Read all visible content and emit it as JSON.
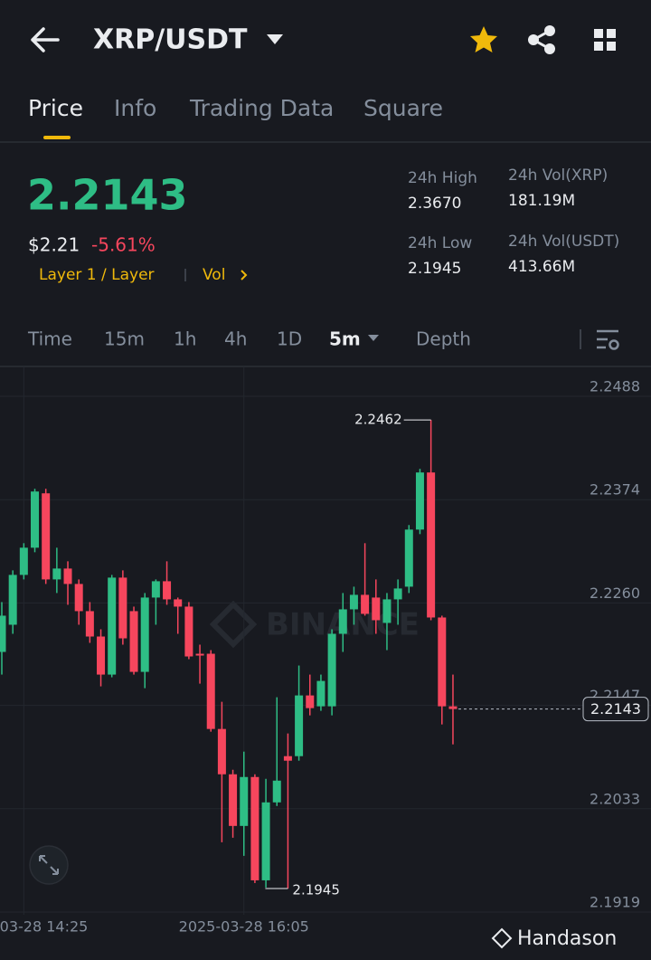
{
  "header": {
    "title": "XRP/USDT"
  },
  "tabs": [
    "Price",
    "Info",
    "Trading Data",
    "Square"
  ],
  "price": {
    "last": "2.2143",
    "usd": "$2.21",
    "change": "-5.61%",
    "tag": "Layer 1 / Layer",
    "vol_link": "Vol"
  },
  "stats": [
    {
      "label": "24h High",
      "value": "2.3670"
    },
    {
      "label": "24h Low",
      "value": "2.1945"
    },
    {
      "label": "24h Vol(XRP)",
      "value": "181.19M"
    },
    {
      "label": "24h Vol(USDT)",
      "value": "413.66M"
    }
  ],
  "intervals": [
    "Time",
    "15m",
    "1h",
    "4h",
    "1D",
    "5m",
    "Depth"
  ],
  "chart_data": {
    "type": "candlestick",
    "watermark": "BINANCE",
    "categories": [
      null,
      null,
      "03-28 14:25",
      null,
      null,
      null,
      null,
      null,
      null,
      null,
      null,
      null,
      null,
      null,
      null,
      null,
      null,
      null,
      null,
      null,
      null,
      null,
      "2025-03-28 16:05",
      null,
      null,
      null,
      null,
      null,
      null,
      null,
      null,
      null,
      null,
      null,
      null,
      null,
      null,
      null,
      null,
      null,
      null,
      null
    ],
    "open": [
      2.2206,
      2.2236,
      2.2291,
      2.2321,
      2.2381,
      2.2286,
      2.2298,
      2.2281,
      2.2251,
      2.2223,
      2.2181,
      2.2288,
      2.2251,
      2.2184,
      2.2266,
      2.2284,
      2.2264,
      2.2256,
      2.2204,
      2.2204,
      2.2121,
      2.2071,
      2.2014,
      2.2068,
      2.1954,
      2.204,
      2.2091,
      2.2091,
      2.2158,
      2.2146,
      2.2146,
      2.2226,
      2.2253,
      2.2269,
      2.2266,
      2.2238,
      2.2264,
      2.2278,
      2.2341,
      2.2404,
      2.2244,
      2.2146
    ],
    "high": [
      2.2261,
      2.2296,
      2.2326,
      2.2386,
      2.2386,
      2.2321,
      2.2306,
      2.2286,
      2.2261,
      2.2231,
      2.2291,
      2.2296,
      2.2256,
      2.2271,
      2.2286,
      2.2306,
      2.2266,
      2.2261,
      2.2214,
      2.2208,
      2.2151,
      2.2076,
      2.2096,
      2.2071,
      2.2066,
      2.2156,
      2.2116,
      2.2191,
      2.2181,
      2.2181,
      2.2231,
      2.2271,
      2.2278,
      2.2326,
      2.2286,
      2.2271,
      2.2286,
      2.2346,
      2.2408,
      2.2462,
      2.2246,
      2.2181
    ],
    "low": [
      2.2181,
      2.2226,
      2.2286,
      2.2316,
      2.2281,
      2.2271,
      2.2258,
      2.2236,
      2.2216,
      2.2168,
      2.2178,
      2.2214,
      2.2181,
      2.2166,
      2.2236,
      2.2258,
      2.2226,
      2.2198,
      2.2171,
      2.2118,
      2.1996,
      2.2001,
      2.1981,
      2.1951,
      2.1946,
      2.2036,
      2.1945,
      2.2086,
      2.2136,
      2.2141,
      2.2136,
      2.2206,
      2.2236,
      2.2246,
      2.2226,
      2.2208,
      2.2236,
      2.2271,
      2.2336,
      2.2241,
      2.2126,
      2.2104
    ],
    "close": [
      2.2246,
      2.2291,
      2.2321,
      2.2383,
      2.2286,
      2.2298,
      2.2281,
      2.2251,
      2.2223,
      2.2181,
      2.2288,
      2.2221,
      2.2184,
      2.2266,
      2.2284,
      2.2264,
      2.2256,
      2.2201,
      2.2202,
      2.2121,
      2.2071,
      2.2014,
      2.2068,
      2.1954,
      2.204,
      2.2064,
      2.2086,
      2.2158,
      2.2144,
      2.2174,
      2.2226,
      2.2253,
      2.2269,
      2.2248,
      2.2241,
      2.2264,
      2.2276,
      2.2341,
      2.2404,
      2.2244,
      2.2146,
      2.2143
    ],
    "up_color": "#2ebd85",
    "down_color": "#f6465d",
    "ylim": [
      2.1916,
      2.2521
    ],
    "yticks": [
      2.2488,
      2.2374,
      {
        "value": 2.226,
        "label": "2.2260"
      },
      2.2147,
      2.2033,
      2.1919
    ],
    "grid": true
  },
  "footer": {
    "watermark": "Handason"
  }
}
